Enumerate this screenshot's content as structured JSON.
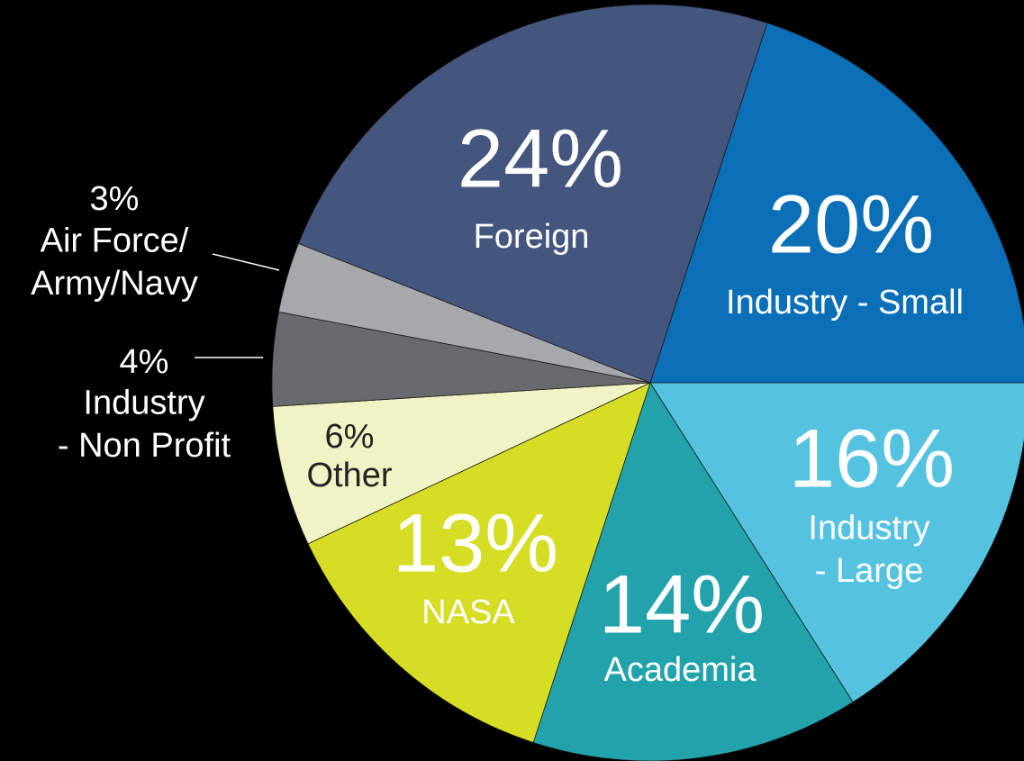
{
  "chart_data": {
    "type": "pie",
    "categories": [
      "Industry - Small",
      "Industry\n- Large",
      "Academia",
      "NASA",
      "Other",
      "Industry\n- Non Profit",
      "Air Force/\nArmy/Navy",
      "Foreign"
    ],
    "values": [
      20,
      16,
      14,
      13,
      6,
      4,
      3,
      24
    ],
    "value_labels": [
      "20%",
      "16%",
      "14%",
      "13%",
      "6%",
      "4%",
      "3%",
      "24%"
    ],
    "colors": [
      "#0b6fb8",
      "#55c2e0",
      "#22a3ab",
      "#d6dd25",
      "#f0f3c4",
      "#696a6e",
      "#a7a8ac",
      "#44567e"
    ]
  }
}
